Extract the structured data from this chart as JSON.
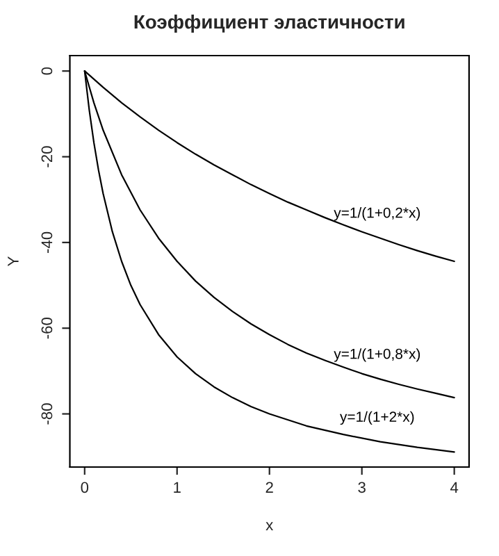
{
  "chart_data": {
    "type": "line",
    "title": "Коэффициент эластичности",
    "xlabel": "x",
    "ylabel": "Y",
    "xlim": [
      -0.16,
      4.16
    ],
    "xticks": [
      0,
      1,
      2,
      3,
      4
    ],
    "ylim": [
      -92.4,
      3.6
    ],
    "yticks": [
      0,
      -20,
      -40,
      -60,
      -80
    ],
    "grid": false,
    "marker": "none",
    "line_style": "solid",
    "series": [
      {
        "name": "y=1/(1+0,2*x)",
        "color": "#000000",
        "x": [
          0,
          0.2,
          0.4,
          0.6,
          0.8,
          1.0,
          1.2,
          1.4,
          1.6,
          1.8,
          2.0,
          2.2,
          2.4,
          2.6,
          2.8,
          3.0,
          3.2,
          3.4,
          3.6,
          3.8,
          4.0
        ],
        "values": [
          0,
          -3.8,
          -7.4,
          -10.7,
          -13.8,
          -16.7,
          -19.4,
          -21.9,
          -24.2,
          -26.5,
          -28.6,
          -30.6,
          -32.4,
          -34.2,
          -35.9,
          -37.5,
          -39.0,
          -40.5,
          -41.9,
          -43.2,
          -44.4
        ]
      },
      {
        "name": "y=1/(1+0,8*x)",
        "color": "#000000",
        "x": [
          0,
          0.1,
          0.2,
          0.4,
          0.6,
          0.8,
          1.0,
          1.2,
          1.4,
          1.6,
          1.8,
          2.0,
          2.2,
          2.4,
          2.6,
          2.8,
          3.0,
          3.2,
          3.4,
          3.6,
          3.8,
          4.0
        ],
        "values": [
          0,
          -7.4,
          -13.8,
          -24.2,
          -32.4,
          -39.0,
          -44.4,
          -49.0,
          -52.8,
          -56.1,
          -59.0,
          -61.5,
          -63.8,
          -65.8,
          -67.5,
          -69.1,
          -70.6,
          -71.9,
          -73.1,
          -74.2,
          -75.2,
          -76.2
        ]
      },
      {
        "name": "y=1/(1+2*x)",
        "color": "#000000",
        "x": [
          0,
          0.05,
          0.1,
          0.15,
          0.2,
          0.3,
          0.4,
          0.5,
          0.6,
          0.8,
          1.0,
          1.2,
          1.4,
          1.6,
          1.8,
          2.0,
          2.4,
          2.8,
          3.2,
          3.6,
          4.0
        ],
        "values": [
          0,
          -9.1,
          -16.7,
          -23.1,
          -28.6,
          -37.5,
          -44.4,
          -50.0,
          -54.5,
          -61.5,
          -66.7,
          -70.6,
          -73.7,
          -76.2,
          -78.3,
          -80.0,
          -82.8,
          -84.8,
          -86.5,
          -87.8,
          -88.9
        ]
      }
    ]
  }
}
